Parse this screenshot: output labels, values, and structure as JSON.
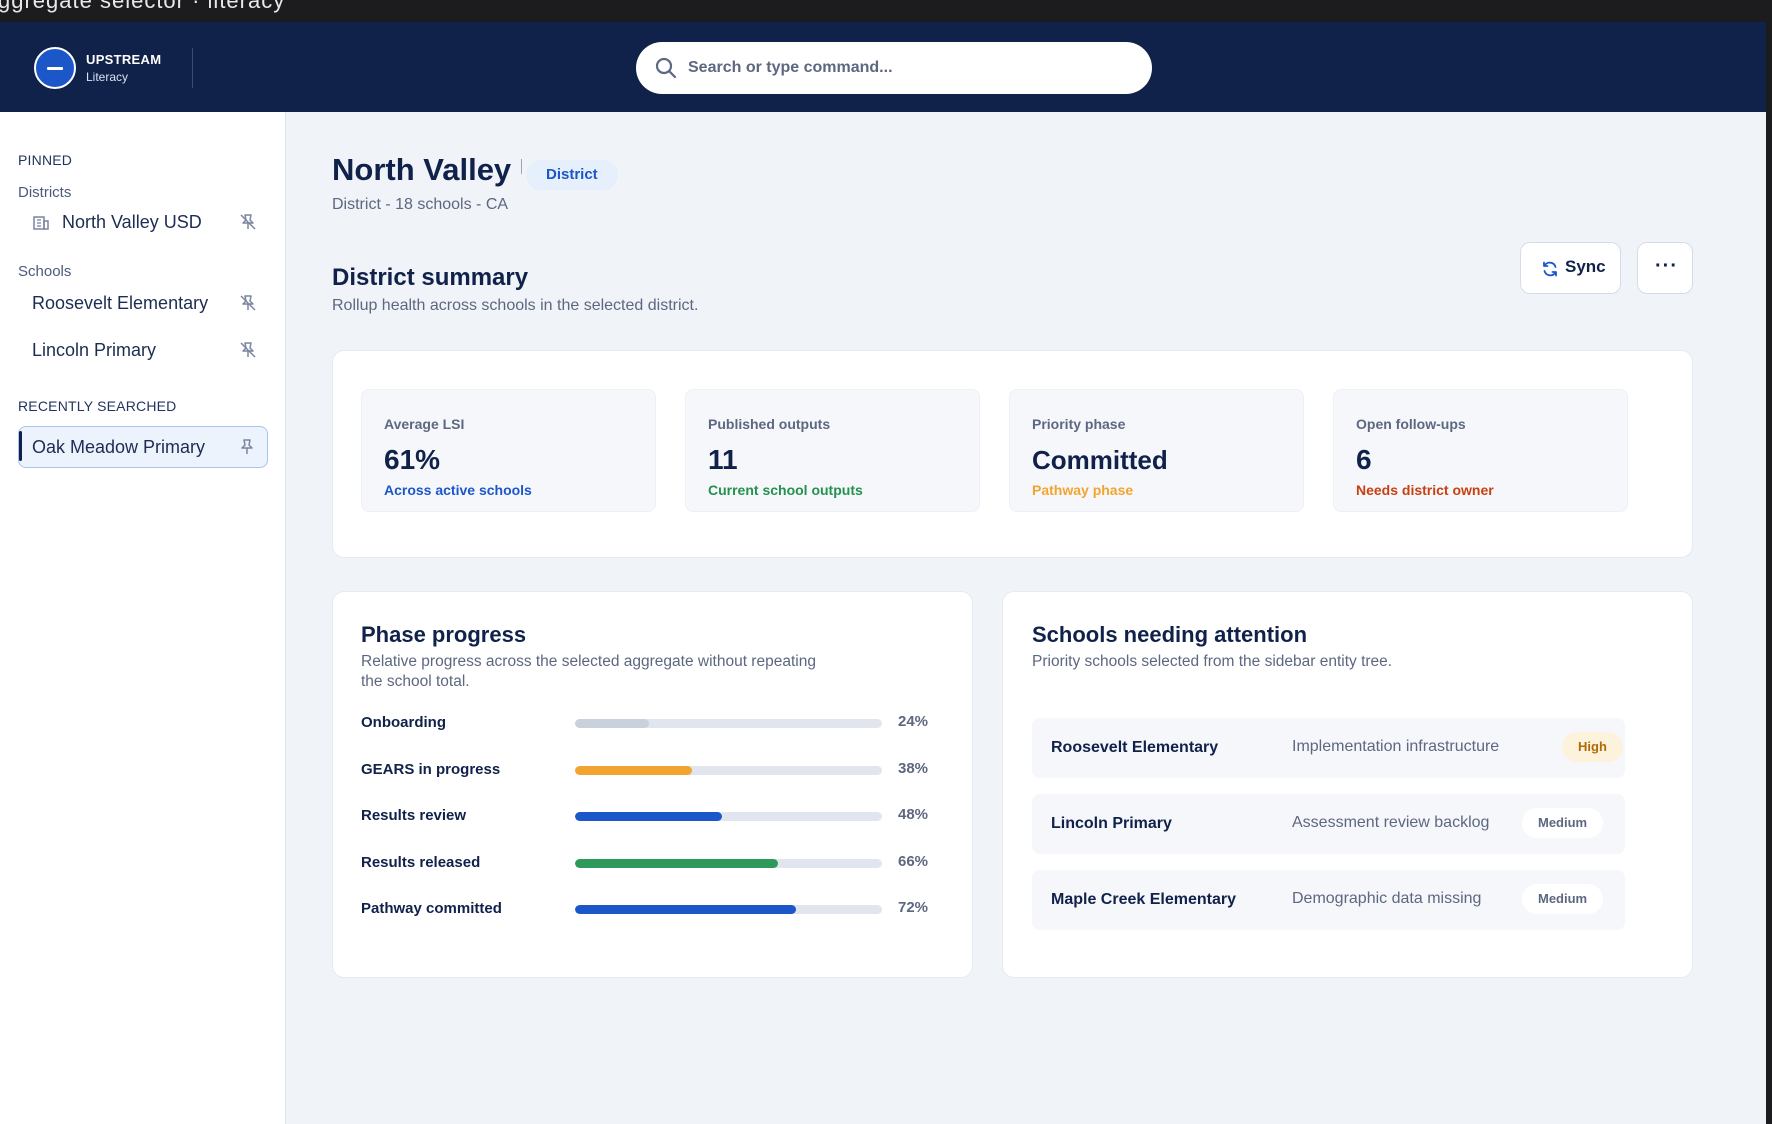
{
  "topbar": {
    "clipped_text": "ggregate selector · literacy"
  },
  "brand": {
    "title": "UPSTREAM",
    "subtitle": "Literacy"
  },
  "search": {
    "placeholder": "Search or type command..."
  },
  "sidebar": {
    "pinned_heading": "PINNED",
    "districts_heading": "Districts",
    "districts": [
      {
        "label": "North Valley USD",
        "icon": "building-icon"
      }
    ],
    "schools_heading": "Schools",
    "schools": [
      {
        "label": "Roosevelt Elementary"
      },
      {
        "label": "Lincoln Primary"
      }
    ],
    "recent_heading": "RECENTLY SEARCHED",
    "recent": [
      {
        "label": "Oak Meadow Primary",
        "active": true
      }
    ]
  },
  "page": {
    "title": "North Valley USD",
    "badge": "District",
    "subtitle": "District - 18 schools - CA",
    "section_title": "District summary",
    "section_subtitle": "Rollup health across schools in the selected district.",
    "sync_label": "Sync",
    "more_label": "···"
  },
  "metrics": [
    {
      "label": "Average LSI",
      "value": "61%",
      "note": "Across active schools",
      "note_color": "#1c57c9"
    },
    {
      "label": "Published outputs",
      "value": "11",
      "note": "Current school outputs",
      "note_color": "#23914f"
    },
    {
      "label": "Priority phase",
      "value": "Committed",
      "note": "Pathway phase",
      "note_color": "#f2a430"
    },
    {
      "label": "Open follow-ups",
      "value": "6",
      "note": "Needs district owner",
      "note_color": "#c93f10"
    }
  ],
  "phase_progress": {
    "title": "Phase progress",
    "subtitle": "Relative progress across the selected aggregate without repeating the school total.",
    "rows": [
      {
        "label": "Onboarding",
        "percent": 24,
        "pct_label": "24%",
        "color": "#c9d1dd"
      },
      {
        "label": "GEARS in progress",
        "percent": 38,
        "pct_label": "38%",
        "color": "#f2a430"
      },
      {
        "label": "Results review",
        "percent": 48,
        "pct_label": "48%",
        "color": "#1c57c9"
      },
      {
        "label": "Results released",
        "percent": 66,
        "pct_label": "66%",
        "color": "#2d9a5c"
      },
      {
        "label": "Pathway committed",
        "percent": 72,
        "pct_label": "72%",
        "color": "#1c57c9"
      }
    ]
  },
  "attention": {
    "title": "Schools needing attention",
    "subtitle": "Priority schools selected from the sidebar entity tree.",
    "rows": [
      {
        "name": "Roosevelt Elementary",
        "issue": "Implementation infrastructure",
        "severity": "High",
        "badge_bg": "#fdf3dc",
        "badge_fg": "#b06a07"
      },
      {
        "name": "Lincoln Primary",
        "issue": "Assessment review backlog",
        "severity": "Medium",
        "badge_bg": "#ffffff",
        "badge_fg": "#5d6780"
      },
      {
        "name": "Maple Creek Elementary",
        "issue": "Demographic data missing",
        "severity": "Medium",
        "badge_bg": "#ffffff",
        "badge_fg": "#5d6780"
      }
    ]
  }
}
